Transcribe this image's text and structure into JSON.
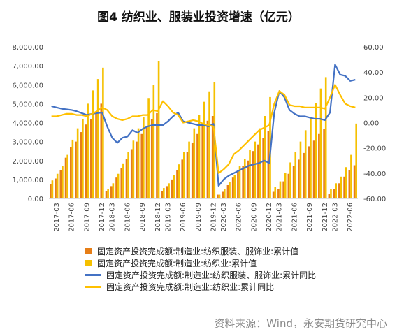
{
  "chart_data": {
    "type": "bar+line",
    "title": "图4 纺织业、服装业投资增速（亿元）",
    "source": "资料来源：Wind，永安期货研究中心",
    "left_axis": {
      "ylim": [
        0,
        8000
      ],
      "ticks": [
        "0.00",
        "1,000.00",
        "2,000.00",
        "3,000.00",
        "4,000.00",
        "5,000.00",
        "6,000.00",
        "7,000.00",
        "8,000.00"
      ]
    },
    "right_axis": {
      "ylim": [
        -60,
        60
      ],
      "ticks": [
        "-60.00",
        "-40.00",
        "-20.00",
        "0.00",
        "20.00",
        "40.00",
        "60.00"
      ]
    },
    "x_tick_labels": [
      "2017-03",
      "2017-06",
      "2017-09",
      "2017-12",
      "2018-03",
      "2018-06",
      "2018-09",
      "2018-12",
      "2019-03",
      "2019-06",
      "2019-09",
      "2019-12",
      "2020-03",
      "2020-06",
      "2020-09",
      "2020-12",
      "2021-03",
      "2021-06",
      "2021-09",
      "2021-12",
      "2022-03",
      "2022-06"
    ],
    "months": [
      "2017-02",
      "2017-03",
      "2017-04",
      "2017-05",
      "2017-06",
      "2017-07",
      "2017-08",
      "2017-09",
      "2017-10",
      "2017-11",
      "2017-12",
      "2018-02",
      "2018-03",
      "2018-04",
      "2018-05",
      "2018-06",
      "2018-07",
      "2018-08",
      "2018-09",
      "2018-10",
      "2018-11",
      "2018-12",
      "2019-02",
      "2019-03",
      "2019-04",
      "2019-05",
      "2019-06",
      "2019-07",
      "2019-08",
      "2019-09",
      "2019-10",
      "2019-11",
      "2019-12",
      "2020-02",
      "2020-03",
      "2020-04",
      "2020-05",
      "2020-06",
      "2020-07",
      "2020-08",
      "2020-09",
      "2020-10",
      "2020-11",
      "2020-12",
      "2021-02",
      "2021-03",
      "2021-04",
      "2021-05",
      "2021-06",
      "2021-07",
      "2021-08",
      "2021-09",
      "2021-10",
      "2021-11",
      "2021-12",
      "2022-02",
      "2022-03",
      "2022-04",
      "2022-05",
      "2022-06",
      "2022-07"
    ],
    "series": [
      {
        "name": "固定资产投资完成额:制造业:纺织服装、服饰业:累计值",
        "type": "bar",
        "axis": "left",
        "color": "#E67E17",
        "values": [
          750,
          1050,
          1500,
          2150,
          2700,
          3000,
          3500,
          3900,
          4200,
          4500,
          5000,
          400,
          650,
          1100,
          1600,
          2100,
          2600,
          3000,
          3400,
          3800,
          4200,
          4500,
          400,
          650,
          1000,
          1500,
          2050,
          2450,
          2950,
          3400,
          3800,
          4100,
          4350,
          200,
          350,
          700,
          1100,
          1500,
          1700,
          2000,
          2500,
          2850,
          3200,
          3550,
          350,
          500,
          900,
          1300,
          1700,
          2050,
          2400,
          2750,
          3050,
          3400,
          3650,
          250,
          500,
          800,
          1150,
          1500,
          1750
        ]
      },
      {
        "name": "固定资产投资完成额:制造业:纺织业:累计值",
        "type": "bar",
        "axis": "left",
        "color": "#F5C000",
        "values": [
          950,
          1300,
          1700,
          2300,
          3100,
          3700,
          4200,
          5000,
          5700,
          6300,
          6900,
          500,
          800,
          1300,
          1850,
          2450,
          3050,
          3700,
          4300,
          5300,
          6000,
          7250,
          550,
          800,
          1250,
          1800,
          2450,
          3000,
          3700,
          4400,
          5100,
          5650,
          6150,
          200,
          500,
          850,
          1250,
          1700,
          2100,
          2550,
          3000,
          3700,
          4350,
          5350,
          600,
          900,
          1350,
          1900,
          2450,
          3000,
          3600,
          4300,
          5050,
          5800,
          6400,
          500,
          800,
          1150,
          1650,
          2300,
          3950
        ]
      },
      {
        "name": "固定资产投资完成额:制造业:纺织服装、服饰业:累计同比",
        "type": "line",
        "axis": "right",
        "color": "#4472C4",
        "values": [
          13,
          12,
          11,
          10.5,
          10,
          9,
          7.5,
          6,
          7,
          7.5,
          8,
          -3,
          -12,
          -16,
          -12,
          -11,
          -6,
          -8,
          -5,
          -3,
          -2,
          -2,
          -2,
          1,
          5,
          8,
          1,
          0,
          -1,
          -2,
          -2,
          -3,
          -1,
          -50,
          -45,
          -42,
          -40,
          -38,
          -36,
          -34,
          -33,
          -32,
          -30,
          -32,
          8,
          25,
          20,
          10,
          7,
          5,
          5,
          4,
          3,
          3,
          2,
          8,
          46,
          38,
          37,
          33,
          34
        ]
      },
      {
        "name": "固定资产投资完成额:制造业:纺织业:累计同比",
        "type": "line",
        "axis": "right",
        "color": "#FFC000",
        "values": [
          5,
          5,
          6,
          7,
          7,
          6,
          6,
          5,
          7,
          9,
          12,
          10,
          5,
          3,
          2,
          3,
          5,
          5,
          6,
          6,
          10,
          9,
          17,
          13,
          8,
          6,
          0,
          1,
          2,
          1,
          -1,
          -2,
          -3,
          -40,
          -37,
          -33,
          -25,
          -22,
          -18,
          -14,
          -10,
          -6,
          -4,
          -2,
          15,
          25,
          22,
          14,
          13,
          13,
          12,
          12,
          12,
          12,
          11,
          20,
          30,
          22,
          15,
          13,
          12
        ]
      }
    ]
  }
}
